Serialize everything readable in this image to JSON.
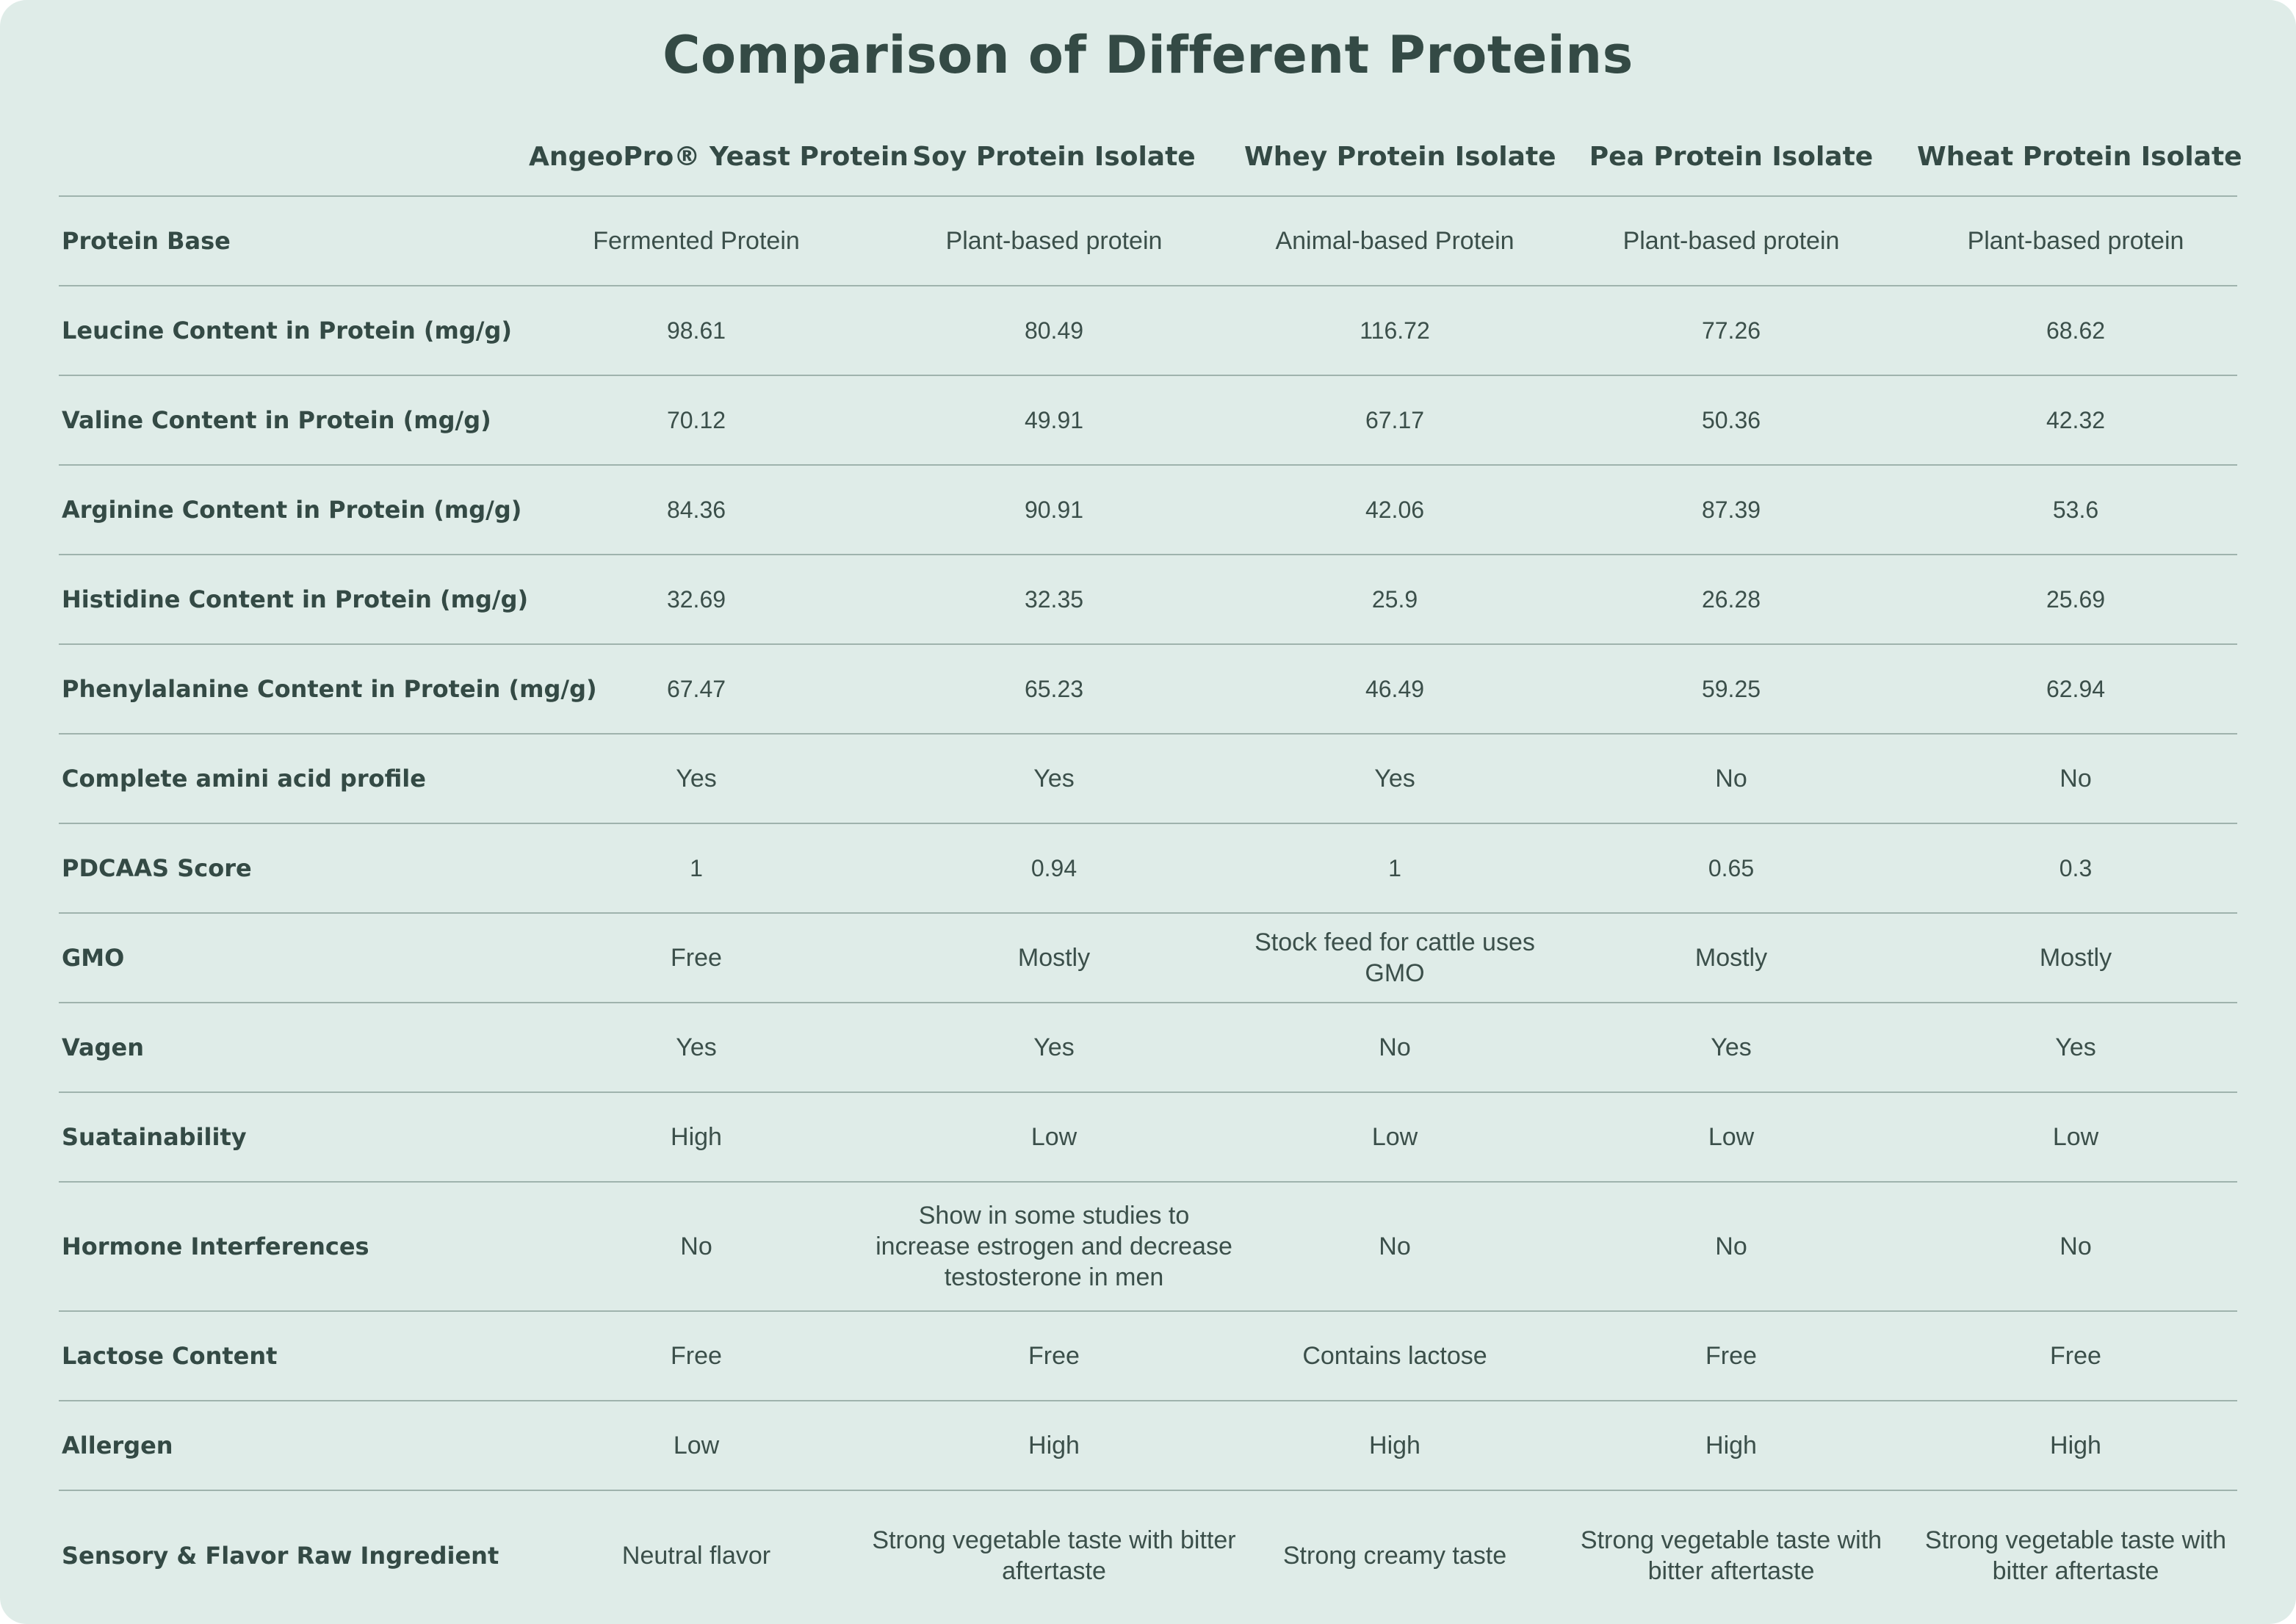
{
  "title": "Comparison of Different Proteins",
  "columns": [
    "",
    "AngeoPro® Yeast Protein",
    "Soy Protein Isolate",
    "Whey Protein Isolate",
    "Pea Protein Isolate",
    "Wheat Protein  Isolate"
  ],
  "rows": [
    {
      "label": "Protein Base",
      "cells": [
        "Fermented Protein",
        "Plant-based protein",
        "Animal-based Protein",
        "Plant-based protein",
        "Plant-based protein"
      ]
    },
    {
      "label": "Leucine Content in Protein (mg/g)",
      "cells": [
        "98.61",
        "80.49",
        "116.72",
        "77.26",
        "68.62"
      ]
    },
    {
      "label": "Valine Content in Protein (mg/g)",
      "cells": [
        "70.12",
        "49.91",
        "67.17",
        "50.36",
        "42.32"
      ]
    },
    {
      "label": "Arginine Content in Protein (mg/g)",
      "cells": [
        "84.36",
        "90.91",
        "42.06",
        "87.39",
        "53.6"
      ]
    },
    {
      "label": "Histidine Content in Protein (mg/g)",
      "cells": [
        "32.69",
        "32.35",
        "25.9",
        "26.28",
        "25.69"
      ]
    },
    {
      "label": "Phenylalanine Content in Protein (mg/g)",
      "cells": [
        "67.47",
        "65.23",
        "46.49",
        "59.25",
        "62.94"
      ]
    },
    {
      "label": "Complete amini acid profile",
      "cells": [
        "Yes",
        "Yes",
        "Yes",
        "No",
        "No"
      ]
    },
    {
      "label": "PDCAAS Score",
      "cells": [
        "1",
        "0.94",
        "1",
        "0.65",
        "0.3"
      ]
    },
    {
      "label": "GMO",
      "cells": [
        "Free",
        "Mostly",
        "Stock feed for cattle uses GMO",
        "Mostly",
        "Mostly"
      ]
    },
    {
      "label": "Vagen",
      "cells": [
        "Yes",
        "Yes",
        "No",
        "Yes",
        "Yes"
      ]
    },
    {
      "label": "Suatainability",
      "cells": [
        "High",
        "Low",
        "Low",
        "Low",
        "Low"
      ]
    },
    {
      "label": "Hormone Interferences",
      "cells": [
        "No",
        "Show in some studies to increase estrogen and decrease testosterone in men",
        "No",
        "No",
        "No"
      ]
    },
    {
      "label": "Lactose Content",
      "cells": [
        "Free",
        "Free",
        "Contains lactose",
        "Free",
        "Free"
      ]
    },
    {
      "label": "Allergen",
      "cells": [
        "Low",
        "High",
        "High",
        "High",
        "High"
      ]
    },
    {
      "label": "Sensory & Flavor Raw Ingredient",
      "cells": [
        "Neutral flavor",
        "Strong vegetable taste with bitter aftertaste",
        "Strong creamy taste",
        "Strong vegetable taste with bitter aftertaste",
        "Strong vegetable taste with bitter aftertaste"
      ]
    }
  ]
}
